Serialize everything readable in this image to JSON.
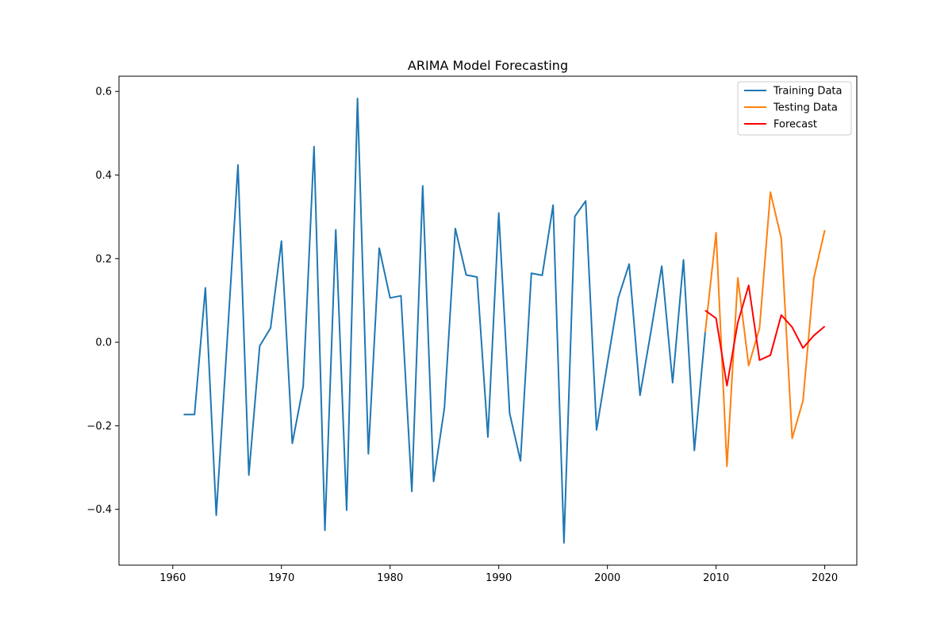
{
  "chart_data": {
    "type": "line",
    "title": "ARIMA Model Forecasting",
    "xlabel": "",
    "ylabel": "",
    "xlim": [
      1955.05,
      2022.95
    ],
    "ylim": [
      -0.5335,
      0.6365
    ],
    "x_ticks": [
      1960,
      1970,
      1980,
      1990,
      2000,
      2010,
      2020
    ],
    "y_ticks": [
      -0.4,
      -0.2,
      0.0,
      0.2,
      0.4,
      0.6
    ],
    "y_tick_labels": [
      "−0.4",
      "−0.2",
      "0.0",
      "0.2",
      "0.4",
      "0.6"
    ],
    "grid": false,
    "legend_position": "upper right",
    "series": [
      {
        "name": "Training Data",
        "color": "#1f77b4",
        "x": [
          1961,
          1962,
          1963,
          1964,
          1965,
          1966,
          1967,
          1968,
          1969,
          1970,
          1971,
          1972,
          1973,
          1974,
          1975,
          1976,
          1977,
          1978,
          1979,
          1980,
          1981,
          1982,
          1983,
          1984,
          1985,
          1986,
          1987,
          1988,
          1989,
          1990,
          1991,
          1992,
          1993,
          1994,
          1995,
          1996,
          1997,
          1998,
          1999,
          2000,
          2001,
          2002,
          2003,
          2004,
          2005,
          2006,
          2007,
          2008,
          2009
        ],
        "values": [
          -0.173,
          -0.173,
          0.13,
          -0.414,
          0.001,
          0.424,
          -0.318,
          -0.009,
          0.034,
          0.242,
          -0.242,
          -0.106,
          0.468,
          -0.45,
          0.269,
          -0.402,
          0.583,
          -0.267,
          0.225,
          0.106,
          0.111,
          -0.357,
          0.374,
          -0.333,
          -0.157,
          0.272,
          0.161,
          0.156,
          -0.227,
          0.309,
          -0.17,
          -0.284,
          0.165,
          0.16,
          0.328,
          -0.48,
          0.301,
          0.338,
          -0.21,
          -0.05,
          0.106,
          0.187,
          -0.127,
          0.025,
          0.182,
          -0.097,
          0.197,
          -0.259,
          0.024
        ]
      },
      {
        "name": "Testing Data",
        "color": "#ff7f0e",
        "x": [
          2009,
          2010,
          2011,
          2012,
          2013,
          2014,
          2015,
          2016,
          2017,
          2018,
          2019,
          2020
        ],
        "values": [
          0.024,
          0.262,
          -0.297,
          0.154,
          -0.056,
          0.034,
          0.359,
          0.248,
          -0.23,
          -0.14,
          0.154,
          0.268
        ]
      },
      {
        "name": "Forecast",
        "color": "#ff0000",
        "x": [
          2009,
          2010,
          2011,
          2012,
          2013,
          2014,
          2015,
          2016,
          2017,
          2018,
          2019,
          2020
        ],
        "values": [
          0.076,
          0.057,
          -0.104,
          0.047,
          0.136,
          -0.043,
          -0.031,
          0.065,
          0.036,
          -0.014,
          0.016,
          0.038
        ]
      }
    ]
  }
}
